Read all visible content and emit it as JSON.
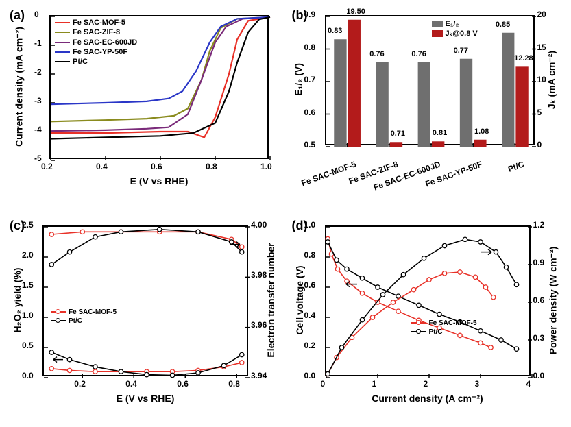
{
  "colors": {
    "red": "#e83128",
    "olive": "#8a8b1e",
    "purple": "#7a2b7a",
    "blue": "#2a36c7",
    "black": "#000000",
    "grey": "#6f6f6f",
    "bar_red": "#b31b1b",
    "axis": "#000000"
  },
  "panel_a": {
    "label": "(a)",
    "x_label": "E (V vs RHE)",
    "y_label": "Current density (mA cm⁻²)",
    "x_ticks": [
      0.2,
      0.4,
      0.6,
      0.8,
      1.0
    ],
    "y_ticks": [
      -5,
      -4,
      -3,
      -2,
      -1,
      0
    ],
    "xlim": [
      0.2,
      1.0
    ],
    "ylim": [
      -5,
      0
    ],
    "legend": [
      {
        "label": "Fe SAC-MOF-5",
        "color": "#e83128"
      },
      {
        "label": "Fe SAC-ZIF-8",
        "color": "#8a8b1e"
      },
      {
        "label": "Fe SAC-EC-600JD",
        "color": "#7a2b7a"
      },
      {
        "label": "Fe SAC-YP-50F",
        "color": "#2a36c7"
      },
      {
        "label": "Pt/C",
        "color": "#000000"
      }
    ],
    "series": [
      {
        "color": "#e83128",
        "pts": [
          [
            0.2,
            -4.05
          ],
          [
            0.4,
            -4.05
          ],
          [
            0.6,
            -4.0
          ],
          [
            0.7,
            -4.0
          ],
          [
            0.76,
            -4.2
          ],
          [
            0.8,
            -3.5
          ],
          [
            0.85,
            -2.0
          ],
          [
            0.88,
            -0.8
          ],
          [
            0.92,
            -0.15
          ],
          [
            1.0,
            -0.02
          ]
        ]
      },
      {
        "color": "#8a8b1e",
        "pts": [
          [
            0.2,
            -3.65
          ],
          [
            0.4,
            -3.6
          ],
          [
            0.55,
            -3.55
          ],
          [
            0.65,
            -3.45
          ],
          [
            0.7,
            -3.2
          ],
          [
            0.75,
            -2.2
          ],
          [
            0.78,
            -1.2
          ],
          [
            0.82,
            -0.4
          ],
          [
            0.88,
            -0.08
          ],
          [
            1.0,
            -0.02
          ]
        ]
      },
      {
        "color": "#7a2b7a",
        "pts": [
          [
            0.2,
            -3.98
          ],
          [
            0.4,
            -3.95
          ],
          [
            0.55,
            -3.9
          ],
          [
            0.63,
            -3.85
          ],
          [
            0.7,
            -3.4
          ],
          [
            0.75,
            -2.2
          ],
          [
            0.8,
            -0.9
          ],
          [
            0.84,
            -0.35
          ],
          [
            0.9,
            -0.08
          ],
          [
            1.0,
            -0.02
          ]
        ]
      },
      {
        "color": "#2a36c7",
        "pts": [
          [
            0.2,
            -3.05
          ],
          [
            0.4,
            -3.0
          ],
          [
            0.55,
            -2.95
          ],
          [
            0.63,
            -2.85
          ],
          [
            0.68,
            -2.6
          ],
          [
            0.73,
            -1.9
          ],
          [
            0.78,
            -0.9
          ],
          [
            0.82,
            -0.35
          ],
          [
            0.88,
            -0.08
          ],
          [
            1.0,
            -0.02
          ]
        ]
      },
      {
        "color": "#000000",
        "pts": [
          [
            0.2,
            -4.25
          ],
          [
            0.4,
            -4.2
          ],
          [
            0.6,
            -4.15
          ],
          [
            0.72,
            -4.05
          ],
          [
            0.8,
            -3.7
          ],
          [
            0.85,
            -2.6
          ],
          [
            0.88,
            -1.6
          ],
          [
            0.92,
            -0.55
          ],
          [
            0.96,
            -0.1
          ],
          [
            1.0,
            -0.02
          ]
        ]
      }
    ]
  },
  "panel_b": {
    "label": "(b)",
    "y_left_label": "E₁/₂ (V)",
    "y_right_label": "Jₖ (mA cm⁻²)",
    "y_left_ticks": [
      0.5,
      0.6,
      0.7,
      0.8,
      0.9
    ],
    "y_right_ticks": [
      0,
      5,
      10,
      15,
      20
    ],
    "y_left_lim": [
      0.5,
      0.9
    ],
    "y_right_lim": [
      0,
      20
    ],
    "categories": [
      "Fe SAC-MOF-5",
      "Fe SAC-ZIF-8",
      "Fe SAC-EC-600JD",
      "Fe SAC-YP-50F",
      "Pt/C"
    ],
    "e12": [
      0.83,
      0.76,
      0.76,
      0.77,
      0.85
    ],
    "jk": [
      19.5,
      0.71,
      0.81,
      1.08,
      12.28
    ],
    "legend_e12": "E₁/₂",
    "legend_jk": "Jₖ@0.8 V"
  },
  "panel_c": {
    "label": "(c)",
    "x_label": "E (V vs RHE)",
    "y_left_label": "H₂O₂ yield (%)",
    "y_right_label": "Electron transfer number",
    "x_ticks": [
      0.2,
      0.4,
      0.6,
      0.8
    ],
    "y_left_ticks": [
      0.0,
      0.5,
      1.0,
      1.5,
      2.0,
      2.5
    ],
    "y_right_ticks": [
      3.94,
      3.96,
      3.98,
      4.0
    ],
    "xlim": [
      0.05,
      0.85
    ],
    "y_left_lim": [
      0,
      2.5
    ],
    "y_right_lim": [
      3.94,
      4.0
    ],
    "legend": [
      {
        "label": "Fe SAC-MOF-5",
        "color": "#e83128"
      },
      {
        "label": "Pt/C",
        "color": "#000000"
      }
    ],
    "yield_red": [
      [
        0.08,
        0.15
      ],
      [
        0.15,
        0.12
      ],
      [
        0.25,
        0.1
      ],
      [
        0.35,
        0.1
      ],
      [
        0.45,
        0.1
      ],
      [
        0.55,
        0.1
      ],
      [
        0.65,
        0.12
      ],
      [
        0.75,
        0.18
      ],
      [
        0.82,
        0.25
      ]
    ],
    "yield_blk": [
      [
        0.08,
        0.42
      ],
      [
        0.15,
        0.3
      ],
      [
        0.25,
        0.18
      ],
      [
        0.35,
        0.1
      ],
      [
        0.45,
        0.05
      ],
      [
        0.55,
        0.04
      ],
      [
        0.65,
        0.08
      ],
      [
        0.75,
        0.2
      ],
      [
        0.82,
        0.38
      ]
    ],
    "n_red": [
      [
        0.08,
        3.997
      ],
      [
        0.2,
        3.998
      ],
      [
        0.35,
        3.998
      ],
      [
        0.5,
        3.998
      ],
      [
        0.65,
        3.998
      ],
      [
        0.78,
        3.995
      ],
      [
        0.82,
        3.992
      ]
    ],
    "n_blk": [
      [
        0.08,
        3.985
      ],
      [
        0.15,
        3.99
      ],
      [
        0.25,
        3.996
      ],
      [
        0.35,
        3.998
      ],
      [
        0.5,
        3.999
      ],
      [
        0.65,
        3.998
      ],
      [
        0.78,
        3.994
      ],
      [
        0.82,
        3.99
      ]
    ]
  },
  "panel_d": {
    "label": "(d)",
    "x_label": "Current density (A cm⁻²)",
    "y_left_label": "Cell voltage (V)",
    "y_right_label": "Power density (W cm⁻²)",
    "x_ticks": [
      0,
      1,
      2,
      3,
      4
    ],
    "y_left_ticks": [
      0.0,
      0.2,
      0.4,
      0.6,
      0.8,
      1.0
    ],
    "y_right_ticks": [
      0.0,
      0.3,
      0.6,
      0.9,
      1.2
    ],
    "xlim": [
      0,
      4
    ],
    "y_left_lim": [
      0,
      1.0
    ],
    "y_right_lim": [
      0,
      1.2
    ],
    "legend": [
      {
        "label": "Fe SAC-MOF-5",
        "color": "#e83128"
      },
      {
        "label": "Pt/C",
        "color": "#000000"
      }
    ],
    "v_red": [
      [
        0.03,
        0.92
      ],
      [
        0.1,
        0.82
      ],
      [
        0.22,
        0.72
      ],
      [
        0.4,
        0.64
      ],
      [
        0.7,
        0.56
      ],
      [
        1.0,
        0.5
      ],
      [
        1.4,
        0.44
      ],
      [
        1.8,
        0.38
      ],
      [
        2.2,
        0.33
      ],
      [
        2.6,
        0.28
      ],
      [
        3.0,
        0.23
      ],
      [
        3.2,
        0.2
      ]
    ],
    "v_blk": [
      [
        0.03,
        0.9
      ],
      [
        0.2,
        0.78
      ],
      [
        0.4,
        0.72
      ],
      [
        0.7,
        0.66
      ],
      [
        1.0,
        0.6
      ],
      [
        1.4,
        0.54
      ],
      [
        1.8,
        0.48
      ],
      [
        2.2,
        0.42
      ],
      [
        2.6,
        0.37
      ],
      [
        3.0,
        0.31
      ],
      [
        3.4,
        0.25
      ],
      [
        3.7,
        0.19
      ]
    ],
    "p_red": [
      [
        0.03,
        0.03
      ],
      [
        0.2,
        0.16
      ],
      [
        0.5,
        0.32
      ],
      [
        0.9,
        0.48
      ],
      [
        1.3,
        0.6
      ],
      [
        1.7,
        0.7
      ],
      [
        2.0,
        0.78
      ],
      [
        2.3,
        0.83
      ],
      [
        2.6,
        0.84
      ],
      [
        2.9,
        0.8
      ],
      [
        3.1,
        0.72
      ],
      [
        3.25,
        0.64
      ]
    ],
    "p_blk": [
      [
        0.03,
        0.03
      ],
      [
        0.3,
        0.24
      ],
      [
        0.7,
        0.46
      ],
      [
        1.1,
        0.66
      ],
      [
        1.5,
        0.82
      ],
      [
        1.9,
        0.95
      ],
      [
        2.3,
        1.05
      ],
      [
        2.7,
        1.1
      ],
      [
        3.0,
        1.08
      ],
      [
        3.3,
        1.0
      ],
      [
        3.5,
        0.88
      ],
      [
        3.7,
        0.74
      ]
    ]
  }
}
